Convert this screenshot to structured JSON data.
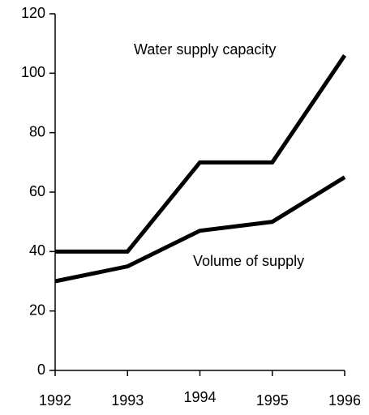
{
  "chart_data": {
    "type": "line",
    "x": [
      1992,
      1993,
      1994,
      1995,
      1996
    ],
    "series": [
      {
        "name": "Water supply capacity",
        "color": "#000000",
        "values": [
          40,
          40,
          70,
          70,
          106
        ]
      },
      {
        "name": "Volume of supply",
        "color": "#000000",
        "values": [
          30,
          35,
          47,
          50,
          65
        ]
      }
    ],
    "xlim": [
      1992,
      1996
    ],
    "xticks": [
      1992,
      1993,
      1994,
      1995,
      1996
    ],
    "ylim": [
      0,
      120
    ],
    "yticks": [
      0,
      20,
      40,
      60,
      80,
      100,
      120
    ]
  }
}
